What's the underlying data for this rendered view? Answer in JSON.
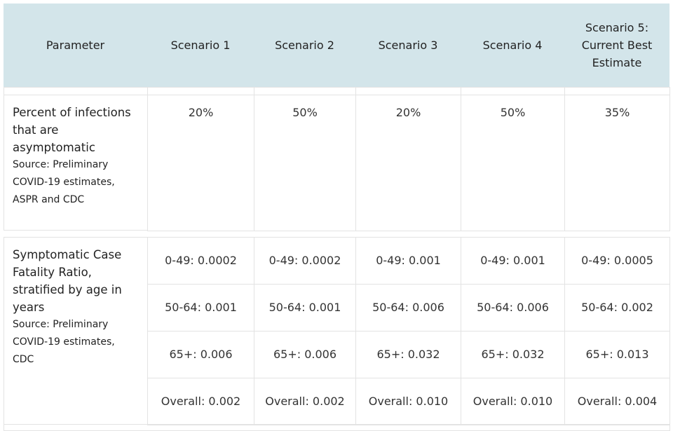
{
  "table": {
    "header": [
      "Parameter",
      "Scenario 1",
      "Scenario 2",
      "Scenario 3",
      "Scenario 4",
      "Scenario 5: Current Best Estimate"
    ],
    "rows": [
      {
        "parameter": "Percent of infections that are asymptomatic",
        "source": "Source: Preliminary COVID-19 estimates, ASPR and CDC",
        "values": [
          [
            "20%",
            "50%",
            "20%",
            "50%",
            "35%"
          ]
        ]
      },
      {
        "parameter": "Symptomatic Case Fatality Ratio, stratified by age in years",
        "source": "Source: Preliminary COVID-19 estimates, CDC",
        "values": [
          [
            "0-49: 0.0002",
            "0-49: 0.0002",
            "0-49: 0.001",
            "0-49: 0.001",
            "0-49: 0.0005"
          ],
          [
            "50-64: 0.001",
            "50-64: 0.001",
            "50-64: 0.006",
            "50-64: 0.006",
            "50-64: 0.002"
          ],
          [
            "65+: 0.006",
            "65+: 0.006",
            "65+: 0.032",
            "65+: 0.032",
            "65+: 0.013"
          ],
          [
            "Overall: 0.002",
            "Overall: 0.002",
            "Overall: 0.010",
            "Overall: 0.010",
            "Overall: 0.004"
          ]
        ]
      }
    ]
  }
}
